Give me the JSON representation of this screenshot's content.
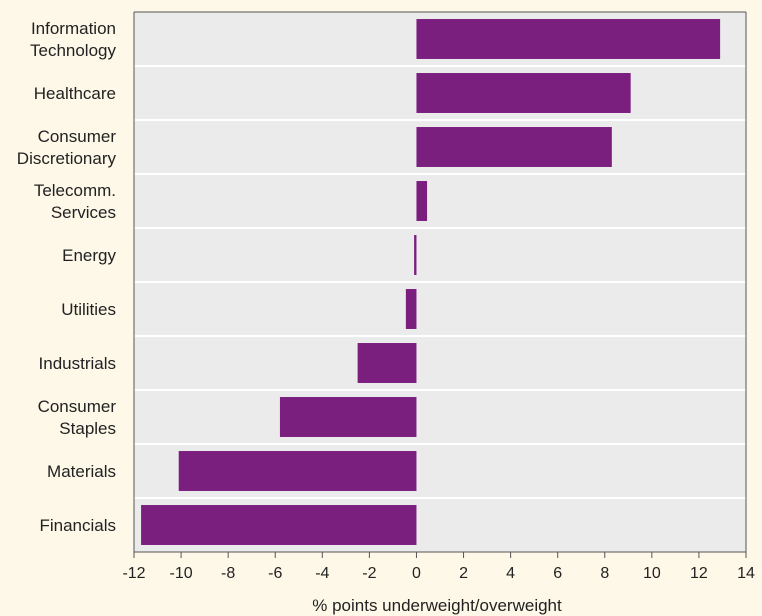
{
  "chart_data": {
    "type": "bar",
    "orientation": "horizontal",
    "categories": [
      "Information Technology",
      "Healthcare",
      "Consumer Discretionary",
      "Telecomm. Services",
      "Energy",
      "Utilities",
      "Industrials",
      "Consumer Staples",
      "Materials",
      "Financials"
    ],
    "category_label_lines": [
      [
        "Information",
        "Technology"
      ],
      [
        "Healthcare"
      ],
      [
        "Consumer",
        "Discretionary"
      ],
      [
        "Telecomm.",
        "Services"
      ],
      [
        "Energy"
      ],
      [
        "Utilities"
      ],
      [
        "Industrials"
      ],
      [
        "Consumer",
        "Staples"
      ],
      [
        "Materials"
      ],
      [
        "Financials"
      ]
    ],
    "values": [
      12.9,
      9.1,
      8.3,
      0.45,
      -0.1,
      -0.45,
      -2.5,
      -5.8,
      -10.1,
      -11.7
    ],
    "title": "",
    "xlabel": "% points underweight/overweight",
    "ylabel": "",
    "xlim": [
      -12,
      14
    ],
    "xticks": [
      -12,
      -10,
      -8,
      -6,
      -4,
      -2,
      0,
      2,
      4,
      6,
      8,
      10,
      12,
      14
    ],
    "grid": true,
    "legend": "none",
    "colors": {
      "bar": "#7b1f7e",
      "plot_background": "#ebebeb",
      "page_background": "#fdf8e8",
      "grid": "#ffffff"
    }
  }
}
